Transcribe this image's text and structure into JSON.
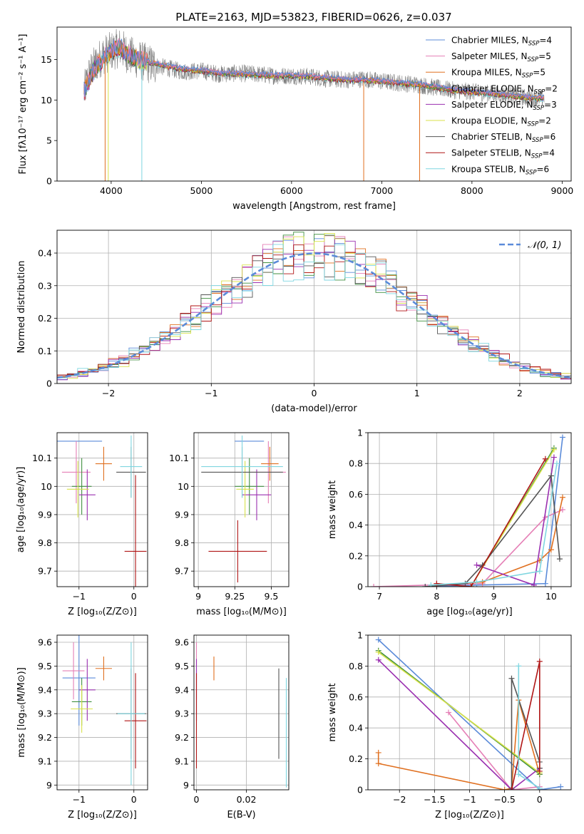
{
  "title": "PLATE=2163, MJD=53823, FIBERID=0626, z=0.037",
  "colors": {
    "chabrier_miles": "#5b8bd9",
    "salpeter_miles": "#e57fb6",
    "kroupa_miles": "#e07020",
    "chabrier_elodie": "#3f8f3f",
    "salpeter_elodie": "#9a2fb0",
    "kroupa_elodie": "#d8e24a",
    "chabrier_stelib": "#555555",
    "salpeter_stelib": "#b01515",
    "kroupa_stelib": "#7fd6e0",
    "gaussian": "#5b8bd9",
    "grid": "#b0b0b0"
  },
  "legend_models": [
    {
      "key": "chabrier_miles",
      "text": "Chabrier MILES, N",
      "sub": "SSP",
      "tail": "=4"
    },
    {
      "key": "salpeter_miles",
      "text": "Salpeter MILES, N",
      "sub": "SSP",
      "tail": "=5"
    },
    {
      "key": "kroupa_miles",
      "text": "Kroupa MILES, N",
      "sub": "SSP",
      "tail": "=5"
    },
    {
      "key": "chabrier_elodie",
      "text": "Chabrier ELODIE, N",
      "sub": "SSP",
      "tail": "=2"
    },
    {
      "key": "salpeter_elodie",
      "text": "Salpeter ELODIE, N",
      "sub": "SSP",
      "tail": "=3"
    },
    {
      "key": "kroupa_elodie",
      "text": "Kroupa ELODIE, N",
      "sub": "SSP",
      "tail": "=2"
    },
    {
      "key": "chabrier_stelib",
      "text": "Chabrier STELIB, N",
      "sub": "SSP",
      "tail": "=6"
    },
    {
      "key": "salpeter_stelib",
      "text": "Salpeter STELIB, N",
      "sub": "SSP",
      "tail": "=4"
    },
    {
      "key": "kroupa_stelib",
      "text": "Kroupa STELIB, N",
      "sub": "SSP",
      "tail": "=6"
    }
  ],
  "chart_data": [
    {
      "id": "spectrum",
      "type": "line",
      "xlabel": "wavelength [Angstrom, rest frame]",
      "ylabel": "Flux [fλ10⁻¹⁷ erg cm⁻² s⁻¹ A⁻¹]",
      "xlim": [
        3400,
        9100
      ],
      "ylim": [
        0,
        19
      ],
      "xticks": [
        4000,
        5000,
        6000,
        7000,
        8000,
        9000
      ],
      "yticks": [
        0,
        5,
        10,
        15
      ],
      "grid": false,
      "legend": "top-right",
      "data_envelope": {
        "x": [
          3700,
          3750,
          3800,
          3900,
          4000,
          4100,
          4200,
          4300,
          4400,
          4600,
          4800,
          5000,
          5200,
          5400,
          5600,
          5800,
          6000,
          6200,
          6400,
          6600,
          6800,
          7000,
          7200,
          7400,
          7600,
          7800,
          8000,
          8200,
          8400,
          8600,
          8800
        ],
        "y": [
          11,
          13,
          14,
          15.5,
          16,
          16.5,
          15.5,
          15,
          14.5,
          14,
          13.5,
          13.6,
          13.2,
          13.3,
          13.2,
          13,
          13,
          12.9,
          12.6,
          12.5,
          12.6,
          12.3,
          12.1,
          11.9,
          11.5,
          11.2,
          11,
          10.8,
          10.6,
          10.3,
          10.2
        ]
      },
      "model_envelope": {
        "x": [
          3700,
          3800,
          3900,
          4000,
          4100,
          4200,
          4300,
          4400,
          4600,
          4800,
          5000,
          5200,
          5400,
          5600,
          5800,
          6000,
          6200,
          6400,
          6600,
          6800,
          7000,
          7200,
          7400,
          7600,
          7800,
          8000,
          8200,
          8400,
          8600,
          8800
        ],
        "y": [
          11,
          13.5,
          15,
          16,
          16.5,
          15.5,
          15,
          14.7,
          14.2,
          13.8,
          13.6,
          13.3,
          13.2,
          13.1,
          13,
          13,
          12.9,
          12.7,
          12.5,
          12.5,
          12.3,
          12.1,
          11.9,
          11.6,
          11.2,
          11,
          10.8,
          10.6,
          10.3,
          10.2
        ]
      },
      "dips": [
        {
          "x": 3933,
          "key": "kroupa_miles"
        },
        {
          "x": 3968,
          "key": "kroupa_elodie"
        },
        {
          "x": 4340,
          "key": "kroupa_stelib"
        },
        {
          "x": 6800,
          "key": "kroupa_miles"
        },
        {
          "x": 7420,
          "key": "kroupa_miles"
        }
      ]
    },
    {
      "id": "residuals",
      "type": "histogram",
      "xlabel": "(data-model)/error",
      "ylabel": "Normed distribution",
      "xlim": [
        -2.5,
        2.5
      ],
      "ylim": [
        0,
        0.47
      ],
      "xticks": [
        -2,
        -1,
        0,
        1,
        2
      ],
      "yticks": [
        0.0,
        0.1,
        0.2,
        0.3,
        0.4
      ],
      "grid": true,
      "legend": "top-right",
      "gaussian_label": "𝒩(0, 1)",
      "bin_width": 0.1,
      "bins_start": -2.5
    },
    {
      "id": "z_age",
      "type": "scatter",
      "xlabel": "Z [log₁₀(Z/Z⊙)]",
      "ylabel": "age  [log₁₀(age/yr)]",
      "xlim": [
        -1.4,
        0.25
      ],
      "ylim": [
        9.645,
        10.19
      ],
      "xticks": [
        -1,
        0
      ],
      "yticks": [
        9.7,
        9.8,
        9.9,
        10.0,
        10.1
      ],
      "grid": true,
      "points": [
        {
          "key": "chabrier_miles",
          "x": -1.03,
          "xe": 0.45,
          "y": 10.16,
          "ye": 0.0
        },
        {
          "key": "salpeter_miles",
          "x": -1.05,
          "xe": 0.26,
          "y": 10.05,
          "ye": 0.11
        },
        {
          "key": "kroupa_miles",
          "x": -0.55,
          "xe": 0.15,
          "y": 10.08,
          "ye": 0.06
        },
        {
          "key": "chabrier_elodie",
          "x": -0.95,
          "xe": 0.18,
          "y": 10.0,
          "ye": 0.1
        },
        {
          "key": "salpeter_elodie",
          "x": -0.85,
          "xe": 0.15,
          "y": 9.97,
          "ye": 0.09
        },
        {
          "key": "kroupa_elodie",
          "x": -1.02,
          "xe": 0.2,
          "y": 9.99,
          "ye": 0.1
        },
        {
          "key": "chabrier_stelib",
          "x": -0.05,
          "xe": 0.27,
          "y": 10.05,
          "ye": 0.09
        },
        {
          "key": "salpeter_stelib",
          "x": 0.03,
          "xe": 0.2,
          "y": 9.77,
          "ye": 0.27
        },
        {
          "key": "kroupa_stelib",
          "x": -0.05,
          "xe": 0.2,
          "y": 10.07,
          "ye": 0.11
        }
      ]
    },
    {
      "id": "mass_age",
      "type": "scatter",
      "xlabel": "mass [log₁₀(M/M⊙)]",
      "ylabel": "",
      "xlim": [
        8.97,
        9.62
      ],
      "ylim": [
        9.645,
        10.19
      ],
      "xticks": [
        9.0,
        9.25,
        9.5
      ],
      "yticks": [
        9.7,
        9.8,
        9.9,
        10.0,
        10.1
      ],
      "grid": true,
      "points": [
        {
          "key": "chabrier_miles",
          "x": 9.35,
          "xe": 0.1,
          "y": 10.16,
          "ye": 0.0
        },
        {
          "key": "salpeter_miles",
          "x": 9.48,
          "xe": 0.12,
          "y": 10.05,
          "ye": 0.11
        },
        {
          "key": "kroupa_miles",
          "x": 9.49,
          "xe": 0.06,
          "y": 10.08,
          "ye": 0.06
        },
        {
          "key": "chabrier_elodie",
          "x": 9.35,
          "xe": 0.1,
          "y": 10.0,
          "ye": 0.1
        },
        {
          "key": "salpeter_elodie",
          "x": 9.4,
          "xe": 0.1,
          "y": 9.97,
          "ye": 0.09
        },
        {
          "key": "kroupa_elodie",
          "x": 9.32,
          "xe": 0.06,
          "y": 9.99,
          "ye": 0.1
        },
        {
          "key": "chabrier_stelib",
          "x": 9.3,
          "xe": 0.28,
          "y": 10.05,
          "ye": 0.09
        },
        {
          "key": "salpeter_stelib",
          "x": 9.27,
          "xe": 0.2,
          "y": 9.77,
          "ye": 0.11
        },
        {
          "key": "kroupa_stelib",
          "x": 9.3,
          "xe": 0.28,
          "y": 10.07,
          "ye": 0.11
        }
      ]
    },
    {
      "id": "age_weight",
      "type": "line",
      "xlabel": "age  [log₁₀(age/yr)]",
      "ylabel": "mass weight",
      "xlim": [
        6.8,
        10.35
      ],
      "ylim": [
        0,
        1
      ],
      "xticks": [
        7,
        8,
        9,
        10
      ],
      "yticks": [
        0.0,
        0.2,
        0.4,
        0.6,
        0.8,
        1.0
      ],
      "grid": true,
      "series": [
        {
          "key": "chabrier_miles",
          "x": [
            7.8,
            8.7,
            9.9,
            10.2
          ],
          "y": [
            0.0,
            0.01,
            0.02,
            0.97
          ]
        },
        {
          "key": "salpeter_miles",
          "x": [
            6.9,
            8.8,
            9.9,
            10.2
          ],
          "y": [
            0.0,
            0.02,
            0.45,
            0.5
          ]
        },
        {
          "key": "kroupa_miles",
          "x": [
            8.0,
            8.8,
            9.8,
            10.0,
            10.2
          ],
          "y": [
            0.01,
            0.03,
            0.17,
            0.24,
            0.58
          ]
        },
        {
          "key": "chabrier_elodie",
          "x": [
            8.6,
            10.05
          ],
          "y": [
            0.0,
            0.9
          ]
        },
        {
          "key": "salpeter_elodie",
          "x": [
            8.7,
            9.7,
            10.05
          ],
          "y": [
            0.14,
            0.01,
            0.84
          ]
        },
        {
          "key": "kroupa_elodie",
          "x": [
            8.6,
            10.05
          ],
          "y": [
            0.0,
            0.89
          ]
        },
        {
          "key": "chabrier_stelib",
          "x": [
            7.8,
            8.5,
            8.8,
            10.0,
            10.15
          ],
          "y": [
            0.0,
            0.02,
            0.14,
            0.72,
            0.18
          ]
        },
        {
          "key": "salpeter_stelib",
          "x": [
            8.0,
            8.6,
            9.9
          ],
          "y": [
            0.02,
            0.0,
            0.83
          ]
        },
        {
          "key": "kroupa_stelib",
          "x": [
            7.9,
            8.7,
            9.8,
            10.1
          ],
          "y": [
            0.01,
            0.03,
            0.1,
            0.8
          ]
        }
      ]
    },
    {
      "id": "z_mass",
      "type": "scatter",
      "xlabel": "Z [log₁₀(Z/Z⊙)]",
      "ylabel": "mass [log₁₀(M/M⊙)]",
      "xlim": [
        -1.4,
        0.25
      ],
      "ylim": [
        8.98,
        9.63
      ],
      "xticks": [
        -1,
        0
      ],
      "yticks": [
        9.0,
        9.1,
        9.2,
        9.3,
        9.4,
        9.5,
        9.6
      ],
      "grid": true,
      "points": [
        {
          "key": "chabrier_miles",
          "x": -1.0,
          "xe": 0.3,
          "y": 9.45,
          "ye": 0.2
        },
        {
          "key": "salpeter_miles",
          "x": -1.1,
          "xe": 0.2,
          "y": 9.48,
          "ye": 0.12
        },
        {
          "key": "kroupa_miles",
          "x": -0.55,
          "xe": 0.15,
          "y": 9.49,
          "ye": 0.05
        },
        {
          "key": "chabrier_elodie",
          "x": -0.95,
          "xe": 0.18,
          "y": 9.35,
          "ye": 0.1
        },
        {
          "key": "salpeter_elodie",
          "x": -0.85,
          "xe": 0.15,
          "y": 9.4,
          "ye": 0.13
        },
        {
          "key": "kroupa_elodie",
          "x": -0.95,
          "xe": 0.2,
          "y": 9.32,
          "ye": 0.1
        },
        {
          "key": "chabrier_stelib",
          "x": -0.05,
          "xe": 0.27,
          "y": 9.3,
          "ye": 0.19
        },
        {
          "key": "salpeter_stelib",
          "x": 0.03,
          "xe": 0.2,
          "y": 9.27,
          "ye": 0.2
        },
        {
          "key": "kroupa_stelib",
          "x": -0.05,
          "xe": 0.25,
          "y": 9.3,
          "ye": 0.3
        }
      ]
    },
    {
      "id": "ebv_mass",
      "type": "scatter",
      "xlabel": "E(B-V)",
      "ylabel": "",
      "xlim": [
        -0.001,
        0.037
      ],
      "ylim": [
        8.98,
        9.63
      ],
      "xticks": [
        0.0,
        0.02
      ],
      "yticks": [
        9.0,
        9.1,
        9.2,
        9.3,
        9.4,
        9.5,
        9.6
      ],
      "grid": true,
      "points": [
        {
          "key": "salpeter_miles",
          "x": 0.0,
          "xe": 0,
          "y": 9.48,
          "ye": 0.12
        },
        {
          "key": "salpeter_elodie",
          "x": 0.0,
          "xe": 0,
          "y": 9.4,
          "ye": 0.13
        },
        {
          "key": "salpeter_stelib",
          "x": 0.0,
          "xe": 0,
          "y": 9.27,
          "ye": 0.2
        },
        {
          "key": "kroupa_miles",
          "x": 0.007,
          "xe": 0,
          "y": 9.49,
          "ye": 0.05
        },
        {
          "key": "chabrier_stelib",
          "x": 0.033,
          "xe": 0,
          "y": 9.3,
          "ye": 0.19
        },
        {
          "key": "kroupa_stelib",
          "x": 0.036,
          "xe": 0,
          "y": 9.22,
          "ye": 0.23
        }
      ]
    },
    {
      "id": "z_weight",
      "type": "line",
      "xlabel": "Z [log₁₀(Z/Z⊙)]",
      "ylabel": "mass weight",
      "xlim": [
        -2.45,
        0.45
      ],
      "ylim": [
        0,
        1
      ],
      "xticks": [
        -2.0,
        -1.5,
        -1.0,
        -0.5,
        0.0
      ],
      "yticks": [
        0.0,
        0.2,
        0.4,
        0.6,
        0.8,
        1.0
      ],
      "grid": true,
      "series": [
        {
          "key": "chabrier_miles",
          "x": [
            -2.3,
            0.0,
            0.3
          ],
          "y": [
            0.97,
            0.0,
            0.02
          ]
        },
        {
          "key": "salpeter_miles",
          "x": [
            -1.3,
            -0.4,
            0.0
          ],
          "y": [
            0.5,
            0.0,
            0.02
          ]
        },
        {
          "key": "kroupa_miles",
          "x": [
            -2.3,
            -2.3,
            -0.5,
            -0.4,
            -0.3,
            0.0
          ],
          "y": [
            0.24,
            0.17,
            0.0,
            0.01,
            0.58,
            0.1
          ]
        },
        {
          "key": "chabrier_elodie",
          "x": [
            -2.3,
            0.0
          ],
          "y": [
            0.9,
            0.1
          ]
        },
        {
          "key": "salpeter_elodie",
          "x": [
            -2.3,
            -0.4,
            0.0
          ],
          "y": [
            0.84,
            0.0,
            0.14
          ]
        },
        {
          "key": "kroupa_elodie",
          "x": [
            -2.3,
            0.0
          ],
          "y": [
            0.89,
            0.11
          ]
        },
        {
          "key": "chabrier_stelib",
          "x": [
            -0.4,
            -0.4,
            0.0,
            0.0
          ],
          "y": [
            0.01,
            0.72,
            0.18,
            0.14
          ]
        },
        {
          "key": "salpeter_stelib",
          "x": [
            -0.4,
            0.0,
            0.0
          ],
          "y": [
            0.0,
            0.83,
            0.12
          ]
        },
        {
          "key": "kroupa_stelib",
          "x": [
            -0.3,
            -0.3,
            0.0
          ],
          "y": [
            0.8,
            0.1,
            0.01
          ]
        }
      ]
    }
  ]
}
